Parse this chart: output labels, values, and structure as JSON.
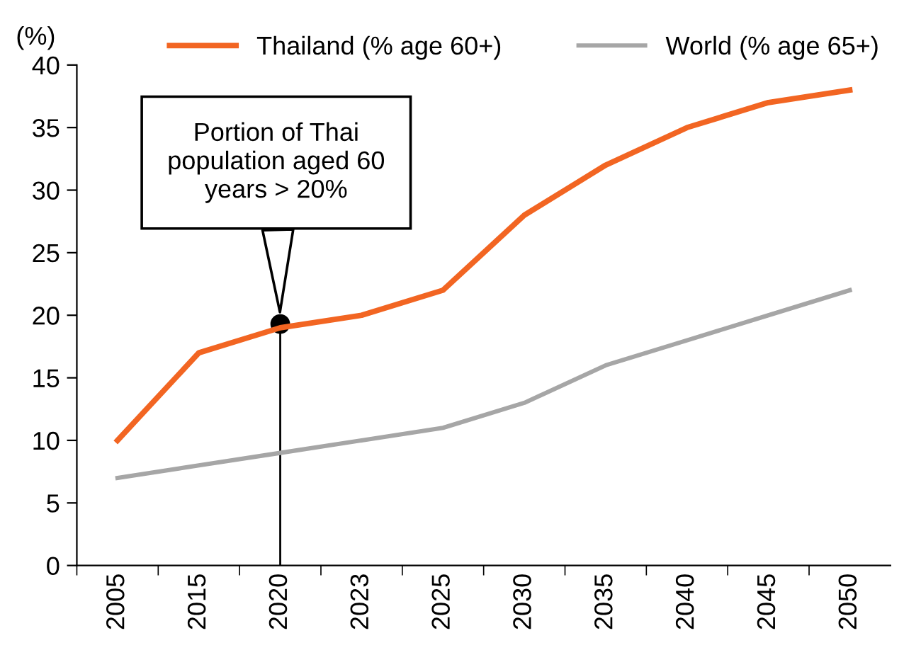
{
  "chart_data": {
    "type": "line",
    "categories": [
      "2005",
      "2015",
      "2020",
      "2023",
      "2025",
      "2030",
      "2035",
      "2040",
      "2045",
      "2050"
    ],
    "series": [
      {
        "name": "Thailand (% age 60+)",
        "color": "#f26522",
        "values": [
          10,
          17,
          19,
          20,
          22,
          28,
          32,
          35,
          37,
          38
        ]
      },
      {
        "name": "World (% age 65+)",
        "color": "#a6a6a6",
        "values": [
          7,
          8,
          9,
          10,
          11,
          13,
          16,
          18,
          20,
          22
        ]
      }
    ],
    "ylabel": "(%)",
    "ylim": [
      0,
      40
    ],
    "yticks": [
      0,
      5,
      10,
      15,
      20,
      25,
      30,
      35,
      40
    ],
    "annotations": [
      {
        "text": "Portion of Thai\npopulation aged 60\nyears > 20%",
        "x": "2020",
        "y": 19.3
      }
    ],
    "grid": false,
    "legend": "top",
    "marker": "none",
    "line_style": "solid"
  }
}
